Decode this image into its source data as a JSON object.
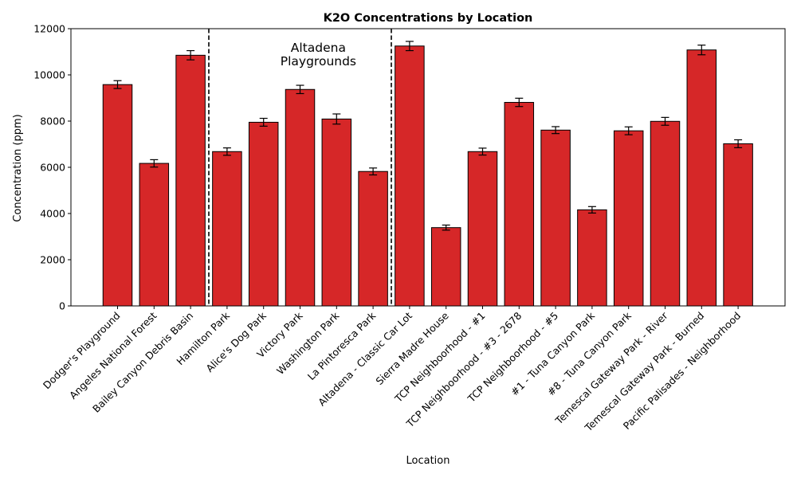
{
  "chart_data": {
    "type": "bar",
    "title": "K2O Concentrations by Location",
    "xlabel": "Location",
    "ylabel": "Concentration (ppm)",
    "ylim": [
      0,
      12000
    ],
    "yticks": [
      0,
      2000,
      4000,
      6000,
      8000,
      10000,
      12000
    ],
    "categories": [
      "Dodger's Playground",
      "Angeles National Forest",
      "Bailey Canyon Debris Basin",
      "Hamilton Park",
      "Alice's Dog Park",
      "Victory Park",
      "Washington Park",
      "La Pintoresca Park",
      "Altadena - Classic Car Lot",
      "Sierra Madre House",
      "TCP Neighboorhood - #1",
      "TCP Neighboorhood - #3 - 2678",
      "TCP Neighboorhood - #5",
      "#1 - Tuna Canyon Park",
      "#8 - Tuna Canyon Park",
      "Temescal Gateway Park - River",
      "Temescal Gateway Park - Burned",
      "Pacific Palisades - Neighborhood"
    ],
    "values": [
      9580,
      6170,
      10850,
      6680,
      7950,
      9370,
      8090,
      5820,
      11250,
      3390,
      6680,
      8810,
      7610,
      4160,
      7580,
      7990,
      11080,
      7020
    ],
    "errors": [
      170,
      160,
      200,
      160,
      170,
      180,
      220,
      150,
      200,
      110,
      150,
      180,
      150,
      140,
      170,
      170,
      210,
      170
    ],
    "bar_color": "#d62728",
    "edge_color": "#000000",
    "separators_after_index": [
      2,
      7
    ],
    "annotations": [
      {
        "text_lines": [
          "Altadena",
          "Playgrounds"
        ],
        "between_categories": [
          5,
          6
        ]
      }
    ],
    "grid": false,
    "legend": "none"
  }
}
